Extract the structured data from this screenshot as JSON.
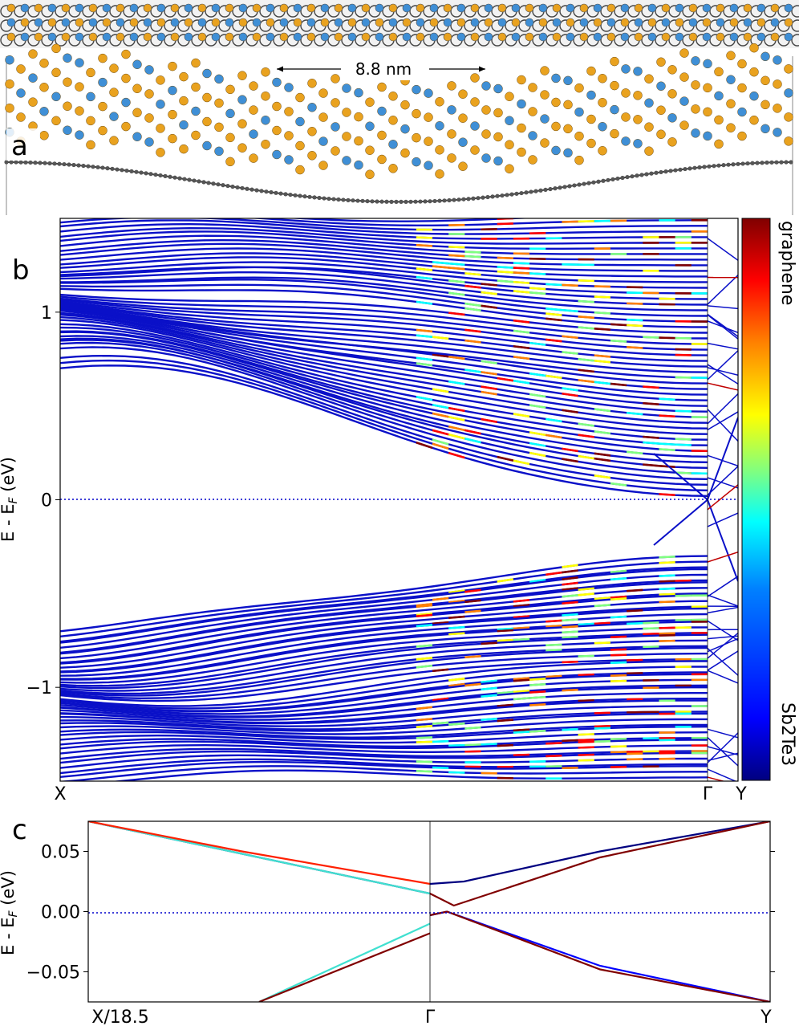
{
  "panel_a": {
    "label": "a",
    "scale_text": "8.8 nm",
    "colors": {
      "te": "#e9a21f",
      "sb": "#3f8fd6",
      "carbon": "#333333"
    }
  },
  "panel_b": {
    "label": "b",
    "ylabel": "E - E",
    "ylabel_sub": "F",
    "ylabel_unit": " (eV)",
    "colorbar_top": "graphene",
    "colorbar_bottom": "Sb2Te3",
    "colormap": [
      "#000080",
      "#0000ff",
      "#0080ff",
      "#00ffff",
      "#80ff80",
      "#ffff00",
      "#ff8000",
      "#ff0000",
      "#800000"
    ]
  },
  "panel_c": {
    "label": "c",
    "ylabel": "E - E",
    "ylabel_sub": "F",
    "ylabel_unit": " (eV)"
  },
  "chart_data": [
    {
      "type": "line",
      "panel": "b",
      "title": "",
      "ylabel": "E - E_F (eV)",
      "ylim": [
        -1.5,
        1.5
      ],
      "yticks": [
        1,
        0,
        -1
      ],
      "ytick_labels": [
        "1",
        "0",
        "−1"
      ],
      "xtick_labels": [
        "X",
        "Γ",
        "Y"
      ],
      "x_fraction_gamma": 0.955,
      "fermi_level": 0,
      "colorbar": {
        "top_label": "graphene",
        "bottom_label": "Sb2Te3"
      },
      "conduction_band_edges_at_X": [
        0.7,
        0.77,
        0.8,
        0.84,
        0.9,
        0.95,
        0.98,
        1.0,
        1.05,
        1.1,
        1.18,
        1.22,
        1.25,
        1.3,
        1.35,
        1.4,
        1.45
      ],
      "valence_band_edges_at_X": [
        -0.7,
        -0.74,
        -0.78,
        -0.82,
        -0.86,
        -0.9,
        -0.95,
        -1.0,
        -1.08,
        -1.12,
        -1.16,
        -1.2,
        -1.25,
        -1.3,
        -1.35,
        -1.4,
        -1.45
      ],
      "dirac_point_at_gamma": 0.0
    },
    {
      "type": "line",
      "panel": "c",
      "title": "",
      "ylabel": "E - E_F (eV)",
      "ylim": [
        -0.075,
        0.075
      ],
      "yticks": [
        0.05,
        0.0,
        -0.05
      ],
      "ytick_labels": [
        "0.05",
        "0.00",
        "−0.05"
      ],
      "xtick_labels": [
        "X/18.5",
        "Γ",
        "Y"
      ],
      "fermi_level": 0,
      "series": [
        {
          "color": "#000080",
          "x": [
            -1.0,
            -0.5,
            0.0
          ],
          "y": [
            0.075,
            0.045,
            0.015
          ]
        },
        {
          "color": "#40e0d0",
          "x": [
            -1.0,
            -0.5,
            0.0
          ],
          "y": [
            0.075,
            0.045,
            0.015
          ]
        },
        {
          "color": "#ff2000",
          "x": [
            -1.0,
            -0.55,
            0.0
          ],
          "y": [
            0.075,
            0.05,
            0.023
          ]
        },
        {
          "color": "#000080",
          "x": [
            0.0,
            0.1,
            0.5,
            1.0
          ],
          "y": [
            0.023,
            0.025,
            0.05,
            0.075
          ]
        },
        {
          "color": "#800000",
          "x": [
            0.0,
            0.07,
            0.5,
            1.0
          ],
          "y": [
            0.015,
            0.005,
            0.045,
            0.075
          ]
        },
        {
          "color": "#40e0d0",
          "x": [
            -0.5,
            0.0
          ],
          "y": [
            -0.075,
            -0.01
          ]
        },
        {
          "color": "#800000",
          "x": [
            -0.5,
            0.0
          ],
          "y": [
            -0.075,
            -0.018
          ]
        },
        {
          "color": "#0000ff",
          "x": [
            0.0,
            0.05,
            0.5,
            1.0
          ],
          "y": [
            -0.003,
            0.0,
            -0.045,
            -0.075
          ]
        },
        {
          "color": "#800000",
          "x": [
            0.0,
            0.05,
            0.5,
            1.0
          ],
          "y": [
            -0.003,
            0.0,
            -0.048,
            -0.075
          ]
        }
      ]
    }
  ]
}
